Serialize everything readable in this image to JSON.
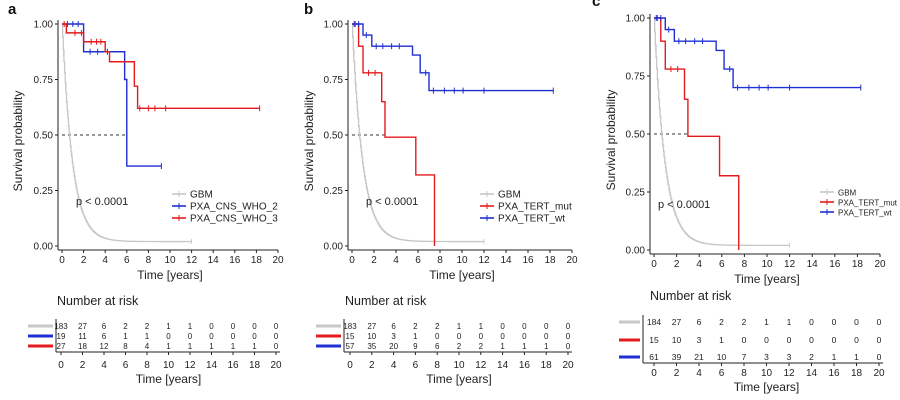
{
  "colors": {
    "gbm": "#c7c7c7",
    "red": "#e41a1c",
    "blue": "#1f2fd1",
    "axis": "#222222",
    "grid": "#333333"
  },
  "chart_data": [
    {
      "type": "line",
      "panel_label": "a",
      "ylabel": "Survival probability",
      "xlabel": "Time [years]",
      "pvalue_text": "p < 0.0001",
      "xlim": [
        0,
        20
      ],
      "ylim": [
        0,
        1
      ],
      "x_ticks": [
        "0",
        "2",
        "4",
        "6",
        "8",
        "10",
        "12",
        "14",
        "16",
        "18",
        "20"
      ],
      "y_ticks": [
        "0.00",
        "0.25",
        "0.50",
        "0.75",
        "1.00"
      ],
      "legend": [
        "GBM",
        "PXA_CNS_WHO_2",
        "PXA_CNS_WHO_3"
      ],
      "series": [
        {
          "name": "GBM",
          "color_key": "gbm",
          "gbm": true,
          "end": 12
        },
        {
          "name": "PXA_CNS_WHO_2",
          "color_key": "blue",
          "steps": [
            [
              0,
              1.0
            ],
            [
              2.0,
              0.875
            ],
            [
              5.8,
              0.75
            ],
            [
              6.0,
              0.36
            ]
          ],
          "end": 9.2,
          "censors": [
            0.5,
            1.0,
            1.5,
            2.6,
            3.3,
            4.2,
            9.2
          ]
        },
        {
          "name": "PXA_CNS_WHO_3",
          "color_key": "red",
          "steps": [
            [
              0,
              1.0
            ],
            [
              0.4,
              0.96
            ],
            [
              2.0,
              0.92
            ],
            [
              4.0,
              0.875
            ],
            [
              4.4,
              0.83
            ],
            [
              6.2,
              0.83
            ],
            [
              6.7,
              0.72
            ],
            [
              7.0,
              0.62
            ]
          ],
          "end": 18.3,
          "censors": [
            0.2,
            1.2,
            1.8,
            2.7,
            3.2,
            3.6,
            7.2,
            8.0,
            8.6,
            9.6,
            18.3
          ]
        }
      ],
      "median_line": {
        "x_end": 6.0,
        "y": 0.5
      },
      "risk_table": {
        "title": "Number at risk",
        "xlabel": "Time [years]",
        "times": [
          "0",
          "2",
          "4",
          "6",
          "8",
          "10",
          "12",
          "14",
          "16",
          "18",
          "20"
        ],
        "rows": [
          {
            "color_key": "gbm",
            "values": [
              "183",
              "27",
              "6",
              "2",
              "2",
              "1",
              "1",
              "0",
              "0",
              "0",
              "0"
            ]
          },
          {
            "color_key": "blue",
            "values": [
              "19",
              "11",
              "6",
              "1",
              "1",
              "0",
              "0",
              "0",
              "0",
              "0",
              "0"
            ]
          },
          {
            "color_key": "red",
            "values": [
              "27",
              "18",
              "12",
              "8",
              "4",
              "1",
              "1",
              "1",
              "1",
              "1",
              "0"
            ]
          }
        ]
      }
    },
    {
      "type": "line",
      "panel_label": "b",
      "ylabel": "Survival probability",
      "xlabel": "Time [years]",
      "pvalue_text": "p < 0.0001",
      "xlim": [
        0,
        20
      ],
      "ylim": [
        0,
        1
      ],
      "x_ticks": [
        "0",
        "2",
        "4",
        "6",
        "8",
        "10",
        "12",
        "14",
        "16",
        "18",
        "20"
      ],
      "y_ticks": [
        "0.00",
        "0.25",
        "0.50",
        "0.75",
        "1.00"
      ],
      "legend": [
        "GBM",
        "PXA_TERT_mut",
        "PXA_TERT_wt"
      ],
      "series": [
        {
          "name": "GBM",
          "color_key": "gbm",
          "gbm": true,
          "end": 12
        },
        {
          "name": "PXA_TERT_mut",
          "color_key": "red",
          "steps": [
            [
              0,
              1.0
            ],
            [
              0.6,
              0.9
            ],
            [
              1.0,
              0.78
            ],
            [
              2.2,
              0.78
            ],
            [
              2.7,
              0.65
            ],
            [
              3.0,
              0.49
            ],
            [
              5.8,
              0.32
            ],
            [
              7.5,
              0.0
            ]
          ],
          "end": 7.5,
          "censors": [
            0.3,
            1.5,
            2.1
          ]
        },
        {
          "name": "PXA_TERT_wt",
          "color_key": "blue",
          "steps": [
            [
              0,
              1.0
            ],
            [
              1.0,
              0.95
            ],
            [
              1.8,
              0.9
            ],
            [
              5.5,
              0.86
            ],
            [
              6.2,
              0.78
            ],
            [
              7.0,
              0.7
            ]
          ],
          "end": 18.3,
          "censors": [
            0.2,
            0.6,
            1.3,
            2.2,
            2.8,
            3.6,
            4.3,
            6.7,
            7.4,
            8.4,
            9.3,
            10.1,
            12.0,
            18.3
          ]
        }
      ],
      "median_line": {
        "x_end": 3.0,
        "y": 0.5
      },
      "risk_table": {
        "title": "Number at risk",
        "xlabel": "Time [years]",
        "times": [
          "0",
          "2",
          "4",
          "6",
          "8",
          "10",
          "12",
          "14",
          "16",
          "18",
          "20"
        ],
        "rows": [
          {
            "color_key": "gbm",
            "values": [
              "183",
              "27",
              "6",
              "2",
              "2",
              "1",
              "1",
              "0",
              "0",
              "0",
              "0"
            ]
          },
          {
            "color_key": "red",
            "values": [
              "15",
              "10",
              "3",
              "1",
              "0",
              "0",
              "0",
              "0",
              "0",
              "0",
              "0"
            ]
          },
          {
            "color_key": "blue",
            "values": [
              "57",
              "35",
              "20",
              "9",
              "6",
              "2",
              "2",
              "1",
              "1",
              "1",
              "0"
            ]
          }
        ]
      }
    },
    {
      "type": "line",
      "panel_label": "c",
      "ylabel": "Survival probability",
      "xlabel": "Time [years]",
      "pvalue_text": "p < 0.0001",
      "xlim": [
        0,
        20
      ],
      "ylim": [
        0,
        1
      ],
      "x_ticks": [
        "0",
        "2",
        "4",
        "6",
        "8",
        "10",
        "12",
        "14",
        "16",
        "18",
        "20"
      ],
      "y_ticks": [
        "0.00",
        "0.25",
        "0.50",
        "0.75",
        "1.00"
      ],
      "legend": [
        "GBM",
        "PXA_TERT_mut",
        "PXA_TERT_wt"
      ],
      "series": [
        {
          "name": "GBM",
          "color_key": "gbm",
          "gbm": true,
          "end": 12
        },
        {
          "name": "PXA_TERT_mut",
          "color_key": "red",
          "steps": [
            [
              0,
              1.0
            ],
            [
              0.6,
              0.9
            ],
            [
              1.0,
              0.78
            ],
            [
              2.2,
              0.78
            ],
            [
              2.7,
              0.65
            ],
            [
              3.0,
              0.49
            ],
            [
              5.8,
              0.32
            ],
            [
              7.5,
              0.0
            ]
          ],
          "end": 7.5,
          "censors": [
            0.3,
            1.5,
            2.1
          ]
        },
        {
          "name": "PXA_TERT_wt",
          "color_key": "blue",
          "steps": [
            [
              0,
              1.0
            ],
            [
              1.0,
              0.95
            ],
            [
              1.8,
              0.9
            ],
            [
              5.5,
              0.86
            ],
            [
              6.2,
              0.78
            ],
            [
              7.0,
              0.7
            ]
          ],
          "end": 18.3,
          "censors": [
            0.2,
            0.6,
            1.3,
            2.2,
            2.8,
            3.6,
            4.3,
            6.7,
            7.4,
            8.4,
            9.3,
            10.1,
            12.0,
            18.3
          ]
        }
      ],
      "median_line": {
        "x_end": 3.0,
        "y": 0.5
      },
      "risk_table": {
        "title": "Number at risk",
        "xlabel": "Time [years]",
        "times": [
          "0",
          "2",
          "4",
          "6",
          "8",
          "10",
          "12",
          "14",
          "16",
          "18",
          "20"
        ],
        "rows": [
          {
            "color_key": "gbm",
            "values": [
              "184",
              "27",
              "6",
              "2",
              "2",
              "1",
              "1",
              "0",
              "0",
              "0",
              "0"
            ]
          },
          {
            "color_key": "red",
            "values": [
              "15",
              "10",
              "3",
              "1",
              "0",
              "0",
              "0",
              "0",
              "0",
              "0",
              "0"
            ]
          },
          {
            "color_key": "blue",
            "values": [
              "61",
              "39",
              "21",
              "10",
              "7",
              "3",
              "3",
              "2",
              "1",
              "1",
              "0"
            ]
          }
        ]
      }
    }
  ]
}
